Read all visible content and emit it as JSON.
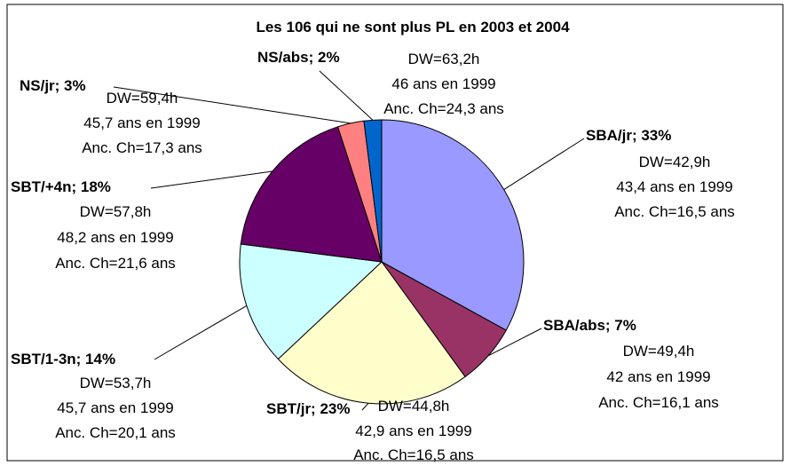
{
  "chart_data": {
    "type": "pie",
    "title": "Les 106 qui ne sont plus PL en 2003 et 2004",
    "values": [
      33,
      7,
      23,
      14,
      18,
      3,
      2
    ],
    "value_labels": [
      "SBA/jr; 33%",
      "SBA/abs; 7%",
      "SBT/jr; 23%",
      "SBT/1-3n; 14%",
      "SBT/+4n; 18%",
      "NS/jr; 3%",
      "NS/abs; 2%"
    ],
    "colors": [
      "#9999ff",
      "#993366",
      "#ffffcc",
      "#ccffff",
      "#660066",
      "#ff8080",
      "#0066cc"
    ],
    "details": [
      [
        "DW=42,9h",
        "43,4 ans en 1999",
        "Anc. Ch=16,5 ans"
      ],
      [
        "DW=49,4h",
        "42 ans en 1999",
        "Anc. Ch=16,1 ans"
      ],
      [
        "DW=44,8h",
        "42,9 ans en 1999",
        "Anc. Ch=16,5 ans"
      ],
      [
        "DW=53,7h",
        "45,7 ans en 1999",
        "Anc. Ch=20,1 ans"
      ],
      [
        "DW=57,8h",
        "48,2 ans en 1999",
        "Anc. Ch=21,6 ans"
      ],
      [
        "DW=59,4h",
        "45,7 ans en 1999",
        "Anc. Ch=17,3 ans"
      ],
      [
        "DW=63,2h",
        "46 ans en 1999",
        "Anc. Ch=24,3 ans"
      ]
    ]
  }
}
